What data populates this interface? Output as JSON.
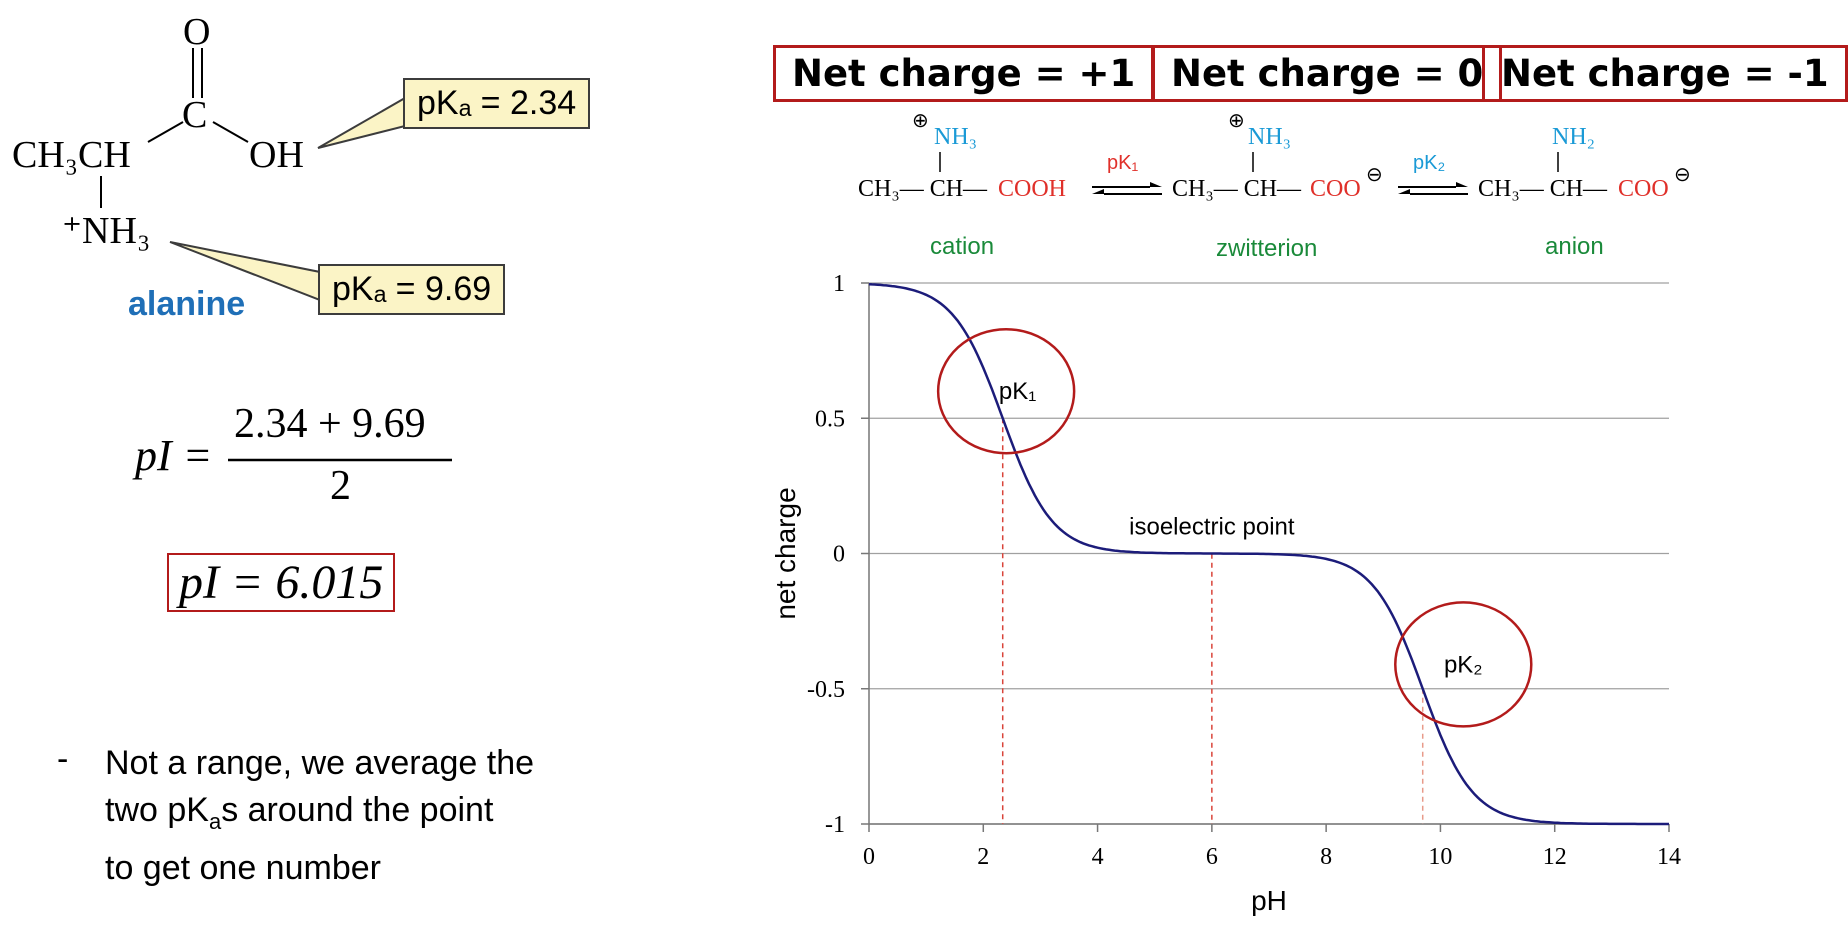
{
  "molecule": {
    "name": "alanine",
    "name_color": "#1f6fb7",
    "carbonyl_o": "O",
    "carbon": "C",
    "oh": "OH",
    "ch3ch": "CH₃CH",
    "nh3": "⁺NH₃",
    "pka_carboxyl": "pKₐ = 2.34",
    "pka_amino": "pKₐ = 9.69"
  },
  "equation": {
    "lhs": "pI =",
    "numerator": "2.34 + 9.69",
    "denominator": "2",
    "result": "pI = 6.015"
  },
  "bullet": {
    "dash": "-",
    "line1": "Not a range, we average the",
    "line2_pre": "two pK",
    "line2_sub": "a",
    "line2_post": "s around the point",
    "line3": "to get one number"
  },
  "net_charges": [
    {
      "label": "Net charge = +1"
    },
    {
      "label": "Net charge = 0"
    },
    {
      "label": "Net charge = -1"
    }
  ],
  "species": {
    "cation": "cation",
    "zwitterion": "zwitterion",
    "anion": "anion",
    "nh3": "NH₃",
    "nh2": "NH₂",
    "ch3ch": "CH₃— CH—",
    "cooh": "COOH",
    "coo": "COO",
    "pk1": "pK₁",
    "pk2": "pK₂",
    "plus": "⊕",
    "minus": "⊖"
  },
  "colors": {
    "accent_red": "#b31b1b",
    "nh_blue": "#1a9ad6",
    "acid_red": "#e0302a",
    "label_green": "#1a8a3a",
    "curve": "#1c1c7a"
  },
  "chart_data": {
    "type": "line",
    "xlabel": "pH",
    "ylabel": "net charge",
    "xlim": [
      0,
      14
    ],
    "ylim": [
      -1,
      1
    ],
    "xticks": [
      0,
      2,
      4,
      6,
      8,
      10,
      12,
      14
    ],
    "yticks": [
      1,
      0.5,
      0,
      -0.5,
      -1
    ],
    "ytick_labels": [
      "1",
      "0.5",
      "0",
      "-0.5",
      "-1"
    ],
    "grid": "horizontal",
    "series": [
      {
        "pKa1": 2.34,
        "pKa2": 9.69,
        "x": [
          0,
          1,
          1.5,
          2,
          2.34,
          2.5,
          3,
          3.5,
          4,
          5,
          6,
          7,
          8,
          9,
          9.5,
          9.69,
          10,
          10.5,
          11,
          12,
          14
        ],
        "y": [
          0.996,
          0.956,
          0.874,
          0.686,
          0.5,
          0.409,
          0.18,
          0.065,
          0.021,
          0.002,
          -0.001,
          -0.002,
          -0.02,
          -0.17,
          -0.392,
          -0.5,
          -0.672,
          -0.866,
          -0.953,
          -0.995,
          -1.0
        ]
      }
    ],
    "vlines": [
      2.34,
      6.0,
      9.69
    ],
    "annotations": [
      {
        "text": "pK₁",
        "x": 2.6,
        "y": 0.6
      },
      {
        "text": "isoelectric point",
        "x": 6.0,
        "y": 0.1
      },
      {
        "text": "pK₂",
        "x": 10.4,
        "y": -0.41
      }
    ]
  }
}
